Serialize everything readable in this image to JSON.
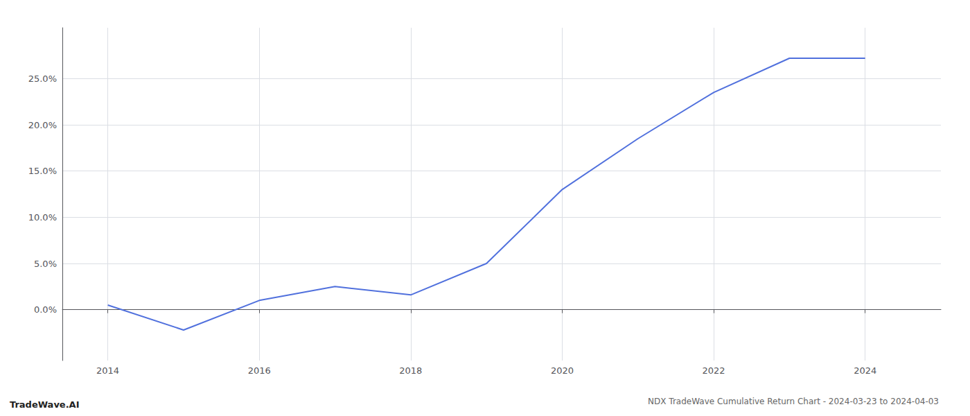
{
  "chart_data": {
    "type": "line",
    "title": "NDX TradeWave Cumulative Return Chart - 2024-03-23 to 2024-04-03",
    "annotations": [
      "TradeWave.AI"
    ],
    "x": [
      2014,
      2015,
      2016,
      2017,
      2018,
      2019,
      2020,
      2021,
      2022,
      2023,
      2024
    ],
    "values": [
      0.005,
      -0.022,
      0.01,
      0.025,
      0.016,
      0.05,
      0.13,
      0.185,
      0.235,
      0.272,
      0.272
    ],
    "xlim": [
      2013.4,
      2025.0
    ],
    "xticks": [
      2014,
      2016,
      2018,
      2020,
      2022,
      2024
    ],
    "ylim": [
      -0.055,
      0.305
    ],
    "yticks": [
      {
        "value": 0.0,
        "label": "0.0%"
      },
      {
        "value": 0.05,
        "label": "5.0%"
      },
      {
        "value": 0.1,
        "label": "10.0%"
      },
      {
        "value": 0.15,
        "label": "15.0%"
      },
      {
        "value": 0.2,
        "label": "20.0%"
      },
      {
        "value": 0.25,
        "label": "25.0%"
      }
    ],
    "grid": true
  }
}
